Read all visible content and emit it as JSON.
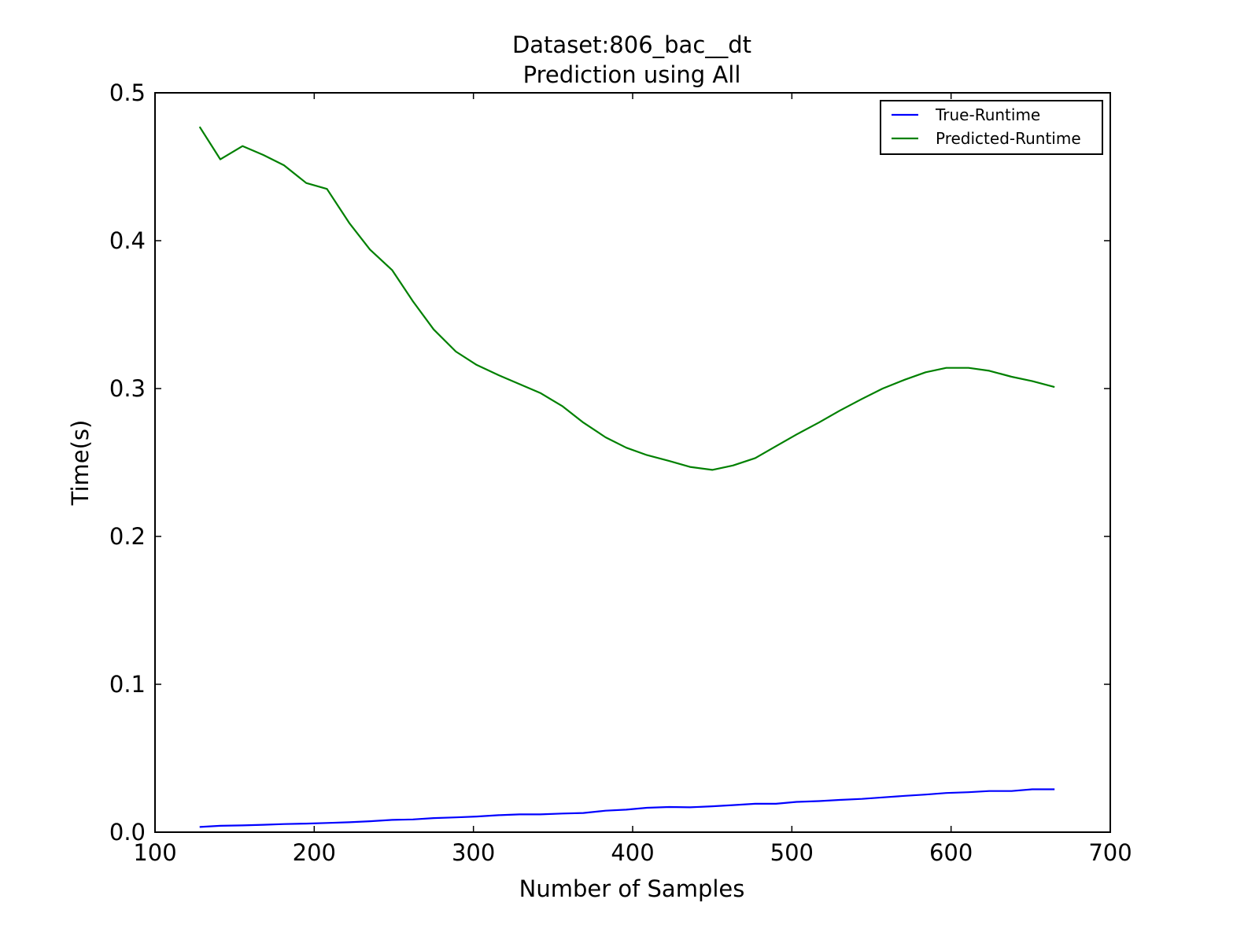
{
  "chart_data": {
    "type": "line",
    "title": "Dataset:806_bac__dt",
    "subtitle": "Prediction using All",
    "xlabel": "Number of Samples",
    "ylabel": "Time(s)",
    "xlim": [
      100,
      700
    ],
    "ylim": [
      0.0,
      0.5
    ],
    "xticks": [
      100,
      200,
      300,
      400,
      500,
      600,
      700
    ],
    "xtick_labels": [
      "100",
      "200",
      "300",
      "400",
      "500",
      "600",
      "700"
    ],
    "yticks": [
      0.0,
      0.1,
      0.2,
      0.3,
      0.4,
      0.5
    ],
    "ytick_labels": [
      "0.0",
      "0.1",
      "0.2",
      "0.3",
      "0.4",
      "0.5"
    ],
    "grid": false,
    "legend_position": "top-right",
    "x": [
      128,
      141,
      155,
      168,
      181,
      195,
      208,
      222,
      235,
      249,
      262,
      275,
      289,
      302,
      316,
      329,
      342,
      356,
      369,
      383,
      396,
      409,
      423,
      436,
      450,
      463,
      477,
      490,
      503,
      517,
      530,
      544,
      557,
      571,
      584,
      597,
      611,
      624,
      638,
      651,
      665
    ],
    "series": [
      {
        "name": "True-Runtime",
        "color": "#0000ff",
        "values": [
          0.0035,
          0.0043,
          0.0046,
          0.005,
          0.0055,
          0.0058,
          0.0062,
          0.0067,
          0.0074,
          0.0083,
          0.0086,
          0.0095,
          0.01,
          0.0106,
          0.0115,
          0.012,
          0.012,
          0.0126,
          0.013,
          0.0145,
          0.0152,
          0.0165,
          0.017,
          0.0168,
          0.0175,
          0.0183,
          0.0192,
          0.0192,
          0.0205,
          0.021,
          0.0218,
          0.0225,
          0.0235,
          0.0246,
          0.0254,
          0.0265,
          0.027,
          0.0278,
          0.0278,
          0.029,
          0.029
        ]
      },
      {
        "name": "Predicted-Runtime",
        "color": "#008000",
        "values": [
          0.477,
          0.455,
          0.464,
          0.458,
          0.451,
          0.439,
          0.435,
          0.412,
          0.394,
          0.38,
          0.359,
          0.34,
          0.325,
          0.316,
          0.309,
          0.303,
          0.297,
          0.288,
          0.277,
          0.267,
          0.26,
          0.255,
          0.251,
          0.247,
          0.245,
          0.248,
          0.253,
          0.261,
          0.269,
          0.277,
          0.285,
          0.293,
          0.3,
          0.306,
          0.311,
          0.314,
          0.314,
          0.312,
          0.308,
          0.305,
          0.301
        ]
      }
    ]
  }
}
